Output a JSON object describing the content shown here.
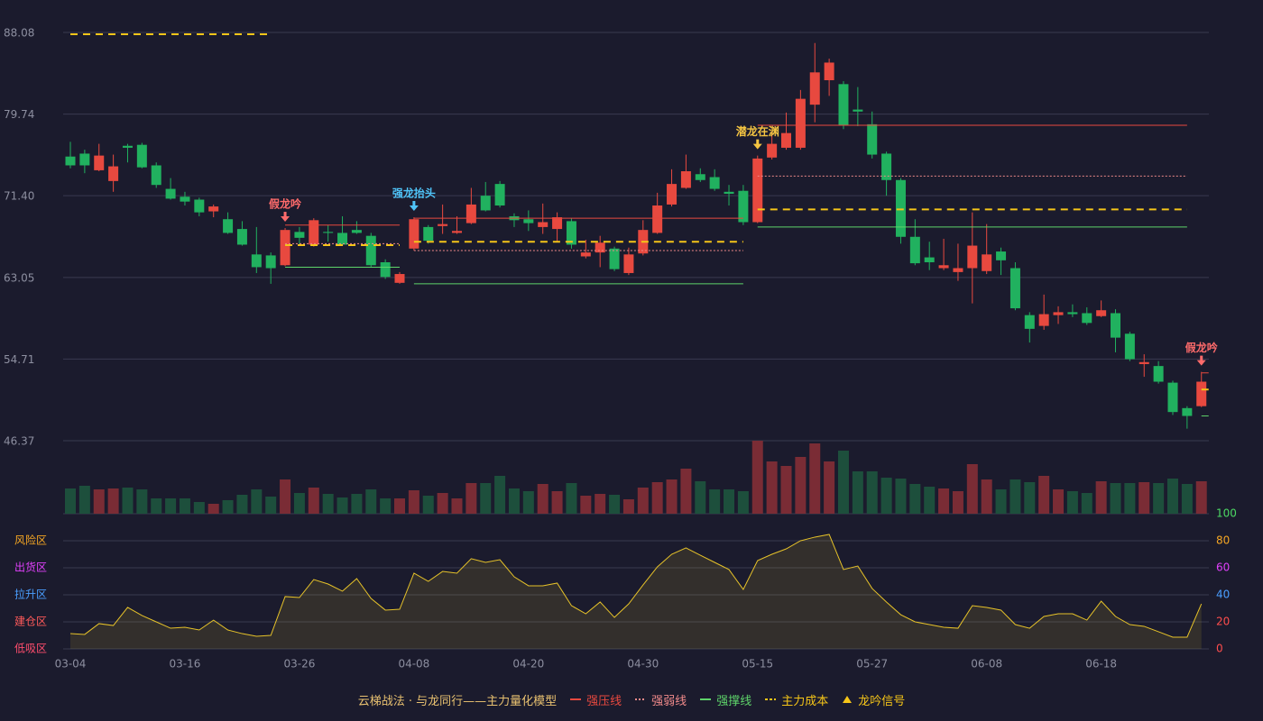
{
  "chart_data": {
    "type": "candlestick",
    "categories": [
      "03-04",
      null,
      null,
      null,
      null,
      null,
      null,
      null,
      "03-16",
      null,
      null,
      null,
      null,
      null,
      null,
      null,
      "03-26",
      null,
      null,
      null,
      null,
      null,
      null,
      null,
      "04-08",
      null,
      null,
      null,
      null,
      null,
      null,
      null,
      "04-20",
      null,
      null,
      null,
      null,
      null,
      null,
      null,
      "04-30",
      null,
      null,
      null,
      null,
      null,
      null,
      null,
      "05-15",
      null,
      null,
      null,
      null,
      null,
      null,
      null,
      "05-27",
      null,
      null,
      null,
      null,
      null,
      null,
      null,
      "06-08",
      null,
      null,
      null,
      null,
      null,
      null,
      null,
      "06-18",
      null,
      null,
      null,
      null,
      null,
      null,
      null
    ],
    "open": [
      75.4,
      75.7,
      74.0,
      72.9,
      76.5,
      76.6,
      74.5,
      72.1,
      71.3,
      71.0,
      69.8,
      69.0,
      68.0,
      65.4,
      65.3,
      64.3,
      67.7,
      66.4,
      67.7,
      67.6,
      67.9,
      67.3,
      64.6,
      62.5,
      66.0,
      68.2,
      68.3,
      67.6,
      68.6,
      71.4,
      72.6,
      69.3,
      69.0,
      68.2,
      68.0,
      68.8,
      65.2,
      65.6,
      66.0,
      63.5,
      65.5,
      67.6,
      70.5,
      72.2,
      73.6,
      73.3,
      71.8,
      71.9,
      68.7,
      75.3,
      76.3,
      76.3,
      80.7,
      83.2,
      82.8,
      80.2,
      78.7,
      75.7,
      73.0,
      67.2,
      65.1,
      64.0,
      63.6,
      64.0,
      63.7,
      65.7,
      64.0,
      59.2,
      58.1,
      59.2,
      59.5,
      59.4,
      59.1,
      59.4,
      57.3,
      54.2,
      54.0,
      52.3,
      49.7,
      49.9
    ],
    "high": [
      76.9,
      76.1,
      76.7,
      75.6,
      76.7,
      76.8,
      74.8,
      73.2,
      71.8,
      71.2,
      70.5,
      69.7,
      68.8,
      68.2,
      65.6,
      68.1,
      68.2,
      69.1,
      68.4,
      69.3,
      68.8,
      67.6,
      64.9,
      63.6,
      69.2,
      68.4,
      70.5,
      69.3,
      72.2,
      72.8,
      72.9,
      69.6,
      69.9,
      70.6,
      69.7,
      69.1,
      66.9,
      67.3,
      66.2,
      66.1,
      68.9,
      71.7,
      74.1,
      75.6,
      74.2,
      74.1,
      72.5,
      72.5,
      75.5,
      78.0,
      79.9,
      82.2,
      87.0,
      85.4,
      83.1,
      82.5,
      80.0,
      75.9,
      73.2,
      69.0,
      66.7,
      67.0,
      66.5,
      69.7,
      68.5,
      66.1,
      64.6,
      59.5,
      61.3,
      60.1,
      60.3,
      60.0,
      60.7,
      59.8,
      57.5,
      55.2,
      54.5,
      52.5,
      49.9,
      53.4
    ],
    "low": [
      74.2,
      73.7,
      73.9,
      71.8,
      74.8,
      74.2,
      72.2,
      71.0,
      70.4,
      69.3,
      69.2,
      67.5,
      66.3,
      63.5,
      62.4,
      64.2,
      66.3,
      66.2,
      66.7,
      66.3,
      67.5,
      64.1,
      62.9,
      62.4,
      65.8,
      66.5,
      67.5,
      67.5,
      68.5,
      69.8,
      70.2,
      68.2,
      67.8,
      67.5,
      66.7,
      66.0,
      65.0,
      64.1,
      63.7,
      63.3,
      65.3,
      67.5,
      70.3,
      72.1,
      72.8,
      71.9,
      70.4,
      68.4,
      68.6,
      75.1,
      76.1,
      76.1,
      78.9,
      81.6,
      78.2,
      78.5,
      75.2,
      71.4,
      66.5,
      64.3,
      63.8,
      63.8,
      62.7,
      60.4,
      63.4,
      63.3,
      59.7,
      56.4,
      57.7,
      58.3,
      59.0,
      58.2,
      59.0,
      55.4,
      54.5,
      52.9,
      52.2,
      49.0,
      47.6,
      49.8
    ],
    "close": [
      74.5,
      74.5,
      75.5,
      74.4,
      76.3,
      74.3,
      72.5,
      71.1,
      70.8,
      69.7,
      70.3,
      67.6,
      66.4,
      64.1,
      64.0,
      67.9,
      67.1,
      68.9,
      67.6,
      66.4,
      67.6,
      64.3,
      63.1,
      63.4,
      69.0,
      66.8,
      68.5,
      67.8,
      70.5,
      69.9,
      70.4,
      68.9,
      68.6,
      68.7,
      69.2,
      66.4,
      65.6,
      66.6,
      63.9,
      65.4,
      67.9,
      70.4,
      72.6,
      73.9,
      73.0,
      72.1,
      71.6,
      68.7,
      75.2,
      76.7,
      77.8,
      81.3,
      84.0,
      85.0,
      78.6,
      80.0,
      75.6,
      73.0,
      67.2,
      64.5,
      64.6,
      64.3,
      64.0,
      66.3,
      65.4,
      64.8,
      59.9,
      57.8,
      59.3,
      59.5,
      59.3,
      58.4,
      59.7,
      56.9,
      54.7,
      54.4,
      52.4,
      49.3,
      48.9,
      52.4
    ],
    "up_color": "#e8493f",
    "down_color": "#21b15f",
    "ylim": [
      46.37,
      88.08
    ],
    "yticks": [
      88.08,
      79.74,
      {
        "value": 71.4,
        "label": "71.40"
      },
      63.05,
      54.71,
      46.37
    ],
    "grid": true,
    "volume": [
      28,
      31,
      27,
      28,
      29,
      27,
      17,
      17,
      17,
      13,
      11,
      15,
      21,
      27,
      19,
      38,
      23,
      29,
      22,
      18,
      22,
      27,
      17,
      17,
      26,
      20,
      23,
      17,
      34,
      34,
      42,
      28,
      25,
      33,
      25,
      34,
      20,
      22,
      21,
      16,
      29,
      35,
      38,
      50,
      36,
      27,
      27,
      25,
      81,
      58,
      53,
      63,
      78,
      58,
      70,
      47,
      47,
      40,
      39,
      33,
      30,
      28,
      25,
      55,
      38,
      27,
      38,
      35,
      42,
      27,
      25,
      23,
      36,
      34,
      34,
      35,
      34,
      39,
      33,
      36
    ],
    "volume_up_color": "#7a2c35",
    "volume_down_color": "#1d4f3c",
    "levels": [
      {
        "name": "强压线",
        "color": "#e8493f",
        "style": "solid",
        "segments": [
          {
            "start": 15,
            "end": 23,
            "value": 68.4
          },
          {
            "start": 24,
            "end": 47,
            "value": 69.1
          },
          {
            "start": 48,
            "end": 78,
            "value": 78.6
          },
          {
            "start": 79,
            "end": 79,
            "value": 53.3
          }
        ]
      },
      {
        "name": "强弱线",
        "color": "#f08a8a",
        "style": "dotted",
        "segments": [
          {
            "start": 15,
            "end": 23,
            "value": 66.5
          },
          {
            "start": 24,
            "end": 47,
            "value": 65.8
          },
          {
            "start": 48,
            "end": 78,
            "value": 73.4
          }
        ]
      },
      {
        "name": "强撑线",
        "color": "#5ed36a",
        "style": "solid",
        "segments": [
          {
            "start": 15,
            "end": 23,
            "value": 64.1
          },
          {
            "start": 24,
            "end": 47,
            "value": 62.4
          },
          {
            "start": 48,
            "end": 78,
            "value": 68.2
          },
          {
            "start": 79,
            "end": 79,
            "value": 48.9
          }
        ]
      },
      {
        "name": "主力成本",
        "color": "#f5c518",
        "style": "dashed",
        "segments": [
          {
            "start": 0,
            "end": 14,
            "value": 87.9
          },
          {
            "start": 15,
            "end": 23,
            "value": 66.35
          },
          {
            "start": 24,
            "end": 47,
            "value": 66.7
          },
          {
            "start": 48,
            "end": 78,
            "value": 70.0
          },
          {
            "start": 79,
            "end": 79,
            "value": 51.6
          }
        ]
      }
    ],
    "signal_legend": {
      "name": "龙吟信号",
      "color": "#f5c518"
    },
    "signals": [
      {
        "index": 15,
        "label": "假龙吟",
        "color": "#ff6b6b"
      },
      {
        "index": 24,
        "label": "强龙抬头",
        "color": "#4fc3f7"
      },
      {
        "index": 48,
        "label": "潜龙在渊",
        "color": "#f5c542"
      },
      {
        "index": 79,
        "label": "假龙吟",
        "color": "#ff6b6b"
      }
    ],
    "indicator": {
      "values": [
        11.3,
        10.7,
        18.7,
        17.3,
        30.7,
        24.7,
        20,
        15.3,
        16,
        14,
        21.3,
        14,
        11.3,
        9.3,
        10,
        38.7,
        38,
        51.3,
        48,
        42.7,
        52,
        37.3,
        28.7,
        29.3,
        56,
        50,
        57.3,
        56,
        66.7,
        64,
        66,
        53.3,
        46.7,
        46.7,
        48.7,
        32,
        26,
        34.7,
        23.3,
        33.3,
        47.3,
        60.7,
        70,
        74.7,
        69.3,
        64,
        58.7,
        44,
        65.3,
        70,
        74,
        80,
        82.7,
        84.7,
        58.7,
        61.3,
        44.7,
        34.7,
        25.3,
        20,
        18,
        16,
        15.3,
        32,
        30.7,
        28.7,
        18,
        15.3,
        24,
        26,
        26,
        21.3,
        35.3,
        24,
        18,
        16.7,
        12.7,
        8.7,
        8.7,
        33.3
      ],
      "color": "#e6c229",
      "ylim": [
        0,
        100
      ],
      "yticks": [
        0,
        20,
        40,
        60,
        80,
        100
      ],
      "ytick_colors": [
        "#ff4d4d",
        "#ff4d4d",
        "#4a9eff",
        "#e040fb",
        "#f5a623",
        "#4cd964"
      ],
      "zones": [
        {
          "value": 80,
          "label": "风险区",
          "color": "#f5a623"
        },
        {
          "value": 60,
          "label": "出货区",
          "color": "#e040fb"
        },
        {
          "value": 40,
          "label": "拉升区",
          "color": "#4a9eff"
        },
        {
          "value": 20,
          "label": "建仓区",
          "color": "#ff5a5a"
        },
        {
          "value": 0,
          "label": "低吸区",
          "color": "#ff4d6d"
        }
      ]
    },
    "legend_title": "云梯战法 · 与龙同行——主力量化模型"
  }
}
